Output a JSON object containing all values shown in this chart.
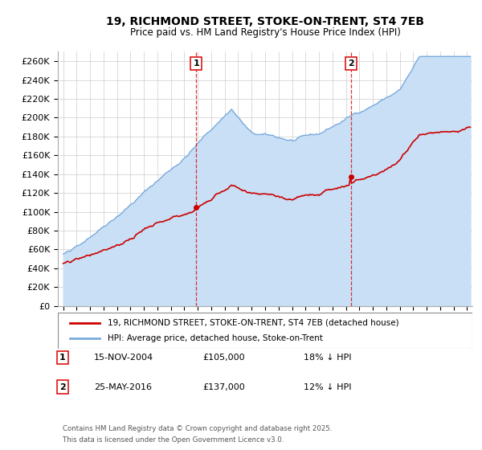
{
  "title": "19, RICHMOND STREET, STOKE-ON-TRENT, ST4 7EB",
  "subtitle": "Price paid vs. HM Land Registry's House Price Index (HPI)",
  "ylim": [
    0,
    270000
  ],
  "yticks": [
    0,
    20000,
    40000,
    60000,
    80000,
    100000,
    120000,
    140000,
    160000,
    180000,
    200000,
    220000,
    240000,
    260000
  ],
  "sale1_date": "15-NOV-2004",
  "sale1_price": 105000,
  "sale1_x_year": 2004.88,
  "sale2_date": "25-MAY-2016",
  "sale2_price": 137000,
  "sale2_x_year": 2016.38,
  "legend_line1": "19, RICHMOND STREET, STOKE-ON-TRENT, ST4 7EB (detached house)",
  "legend_line2": "HPI: Average price, detached house, Stoke-on-Trent",
  "sale1_hpi_diff": "18% ↓ HPI",
  "sale2_hpi_diff": "12% ↓ HPI",
  "footnote1": "Contains HM Land Registry data © Crown copyright and database right 2025.",
  "footnote2": "This data is licensed under the Open Government Licence v3.0.",
  "hpi_color": "#7aaadd",
  "hpi_fill_color": "#c8dff5",
  "price_color": "#cc0000",
  "background_color": "#ffffff",
  "grid_color": "#cccccc",
  "vline_color": "#dd0000",
  "xmin": 1994.6,
  "xmax": 2025.4
}
